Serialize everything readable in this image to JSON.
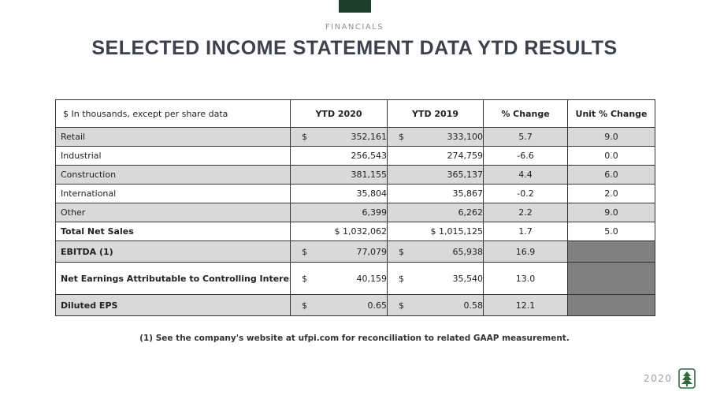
{
  "header": {
    "section": "FINANCIALS",
    "title": "SELECTED INCOME STATEMENT DATA YTD RESULTS"
  },
  "table": {
    "columns": [
      "$ In thousands, except per share data",
      "YTD 2020",
      "YTD 2019",
      "% Change",
      "Unit % Change"
    ],
    "rows": [
      [
        "Retail",
        {
          "sign": "$",
          "amount": "352,161"
        },
        {
          "sign": "$",
          "amount": "333,100"
        },
        "5.7",
        "9.0"
      ],
      [
        "Industrial",
        "256,543",
        "274,759",
        "-6.6",
        "0.0"
      ],
      [
        "Construction",
        "381,155",
        "365,137",
        "4.4",
        "6.0"
      ],
      [
        "International",
        "35,804",
        "35,867",
        "-0.2",
        "2.0"
      ],
      [
        "Other",
        "6,399",
        "6,262",
        "2.2",
        "9.0"
      ],
      [
        "Total Net Sales",
        "$ 1,032,062",
        "$ 1,015,125",
        "1.7",
        "5.0"
      ],
      [
        "EBITDA  (1)",
        {
          "sign": "$",
          "amount": "77,079"
        },
        {
          "sign": "$",
          "amount": "65,938"
        },
        "16.9",
        null
      ],
      [
        "Net Earnings Attributable to Controlling Interest",
        {
          "sign": "$",
          "amount": "40,159"
        },
        {
          "sign": "$",
          "amount": "35,540"
        },
        "13.0",
        null
      ],
      [
        "Diluted EPS",
        {
          "sign": "$",
          "amount": "0.65"
        },
        {
          "sign": "$",
          "amount": "0.58"
        },
        "12.1",
        null
      ]
    ]
  },
  "footnote": "(1) See the company's website at ufpi.com for reconciliation to related GAAP measurement.",
  "footer": {
    "year": "2020"
  }
}
